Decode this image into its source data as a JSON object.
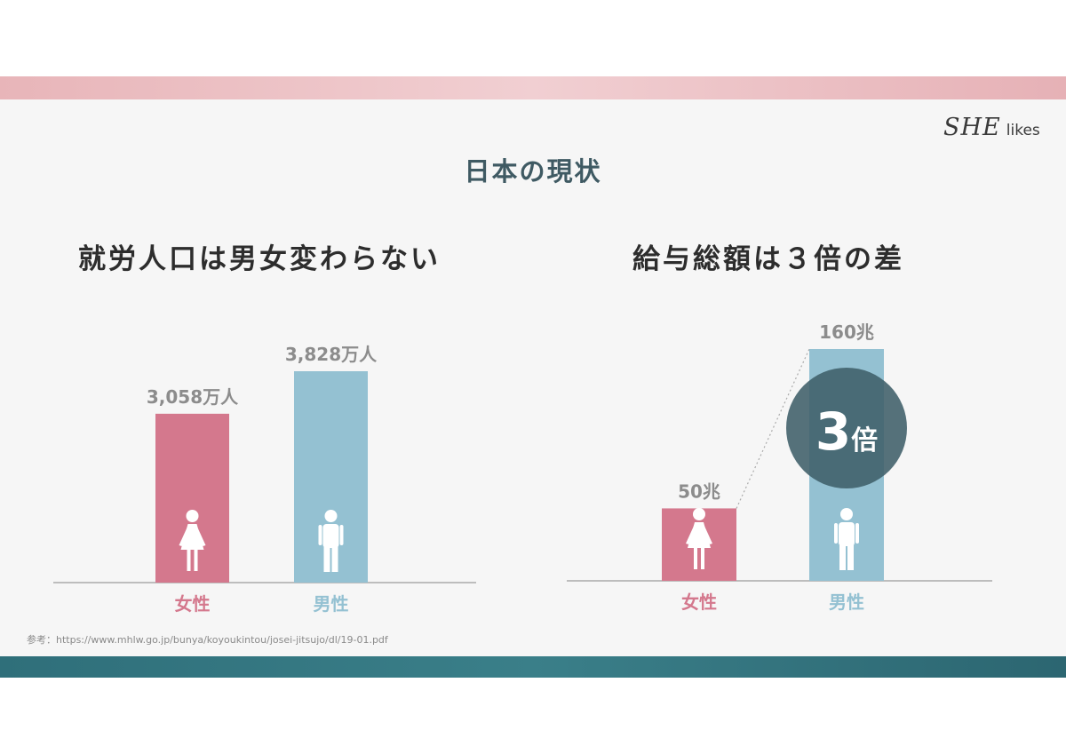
{
  "logo": {
    "mark": "SHE",
    "word": "likes"
  },
  "page_title": "日本の現状",
  "icons": {
    "female": "female-person-icon",
    "male": "male-person-icon"
  },
  "colors": {
    "female": "#d4788d",
    "male": "#94c1d2",
    "badge": "#3f5e69",
    "axis": "#aaaaaa"
  },
  "badge": {
    "number": "3",
    "unit": "倍"
  },
  "source": "参考：https://www.mhlw.go.jp/bunya/koyoukintou/josei-jitsujo/dl/19-01.pdf",
  "chart_data": [
    {
      "type": "bar",
      "title": "就労人口は男女変わらない",
      "categories": [
        "女性",
        "男性"
      ],
      "values": [
        3058,
        3828
      ],
      "data_labels": [
        "3,058万人",
        "3,828万人"
      ],
      "unit": "万人",
      "grid": false
    },
    {
      "type": "bar",
      "title": "給与総額は３倍の差",
      "categories": [
        "女性",
        "男性"
      ],
      "values": [
        50,
        160
      ],
      "data_labels": [
        "50兆",
        "160兆"
      ],
      "unit": "兆",
      "grid": false
    }
  ]
}
